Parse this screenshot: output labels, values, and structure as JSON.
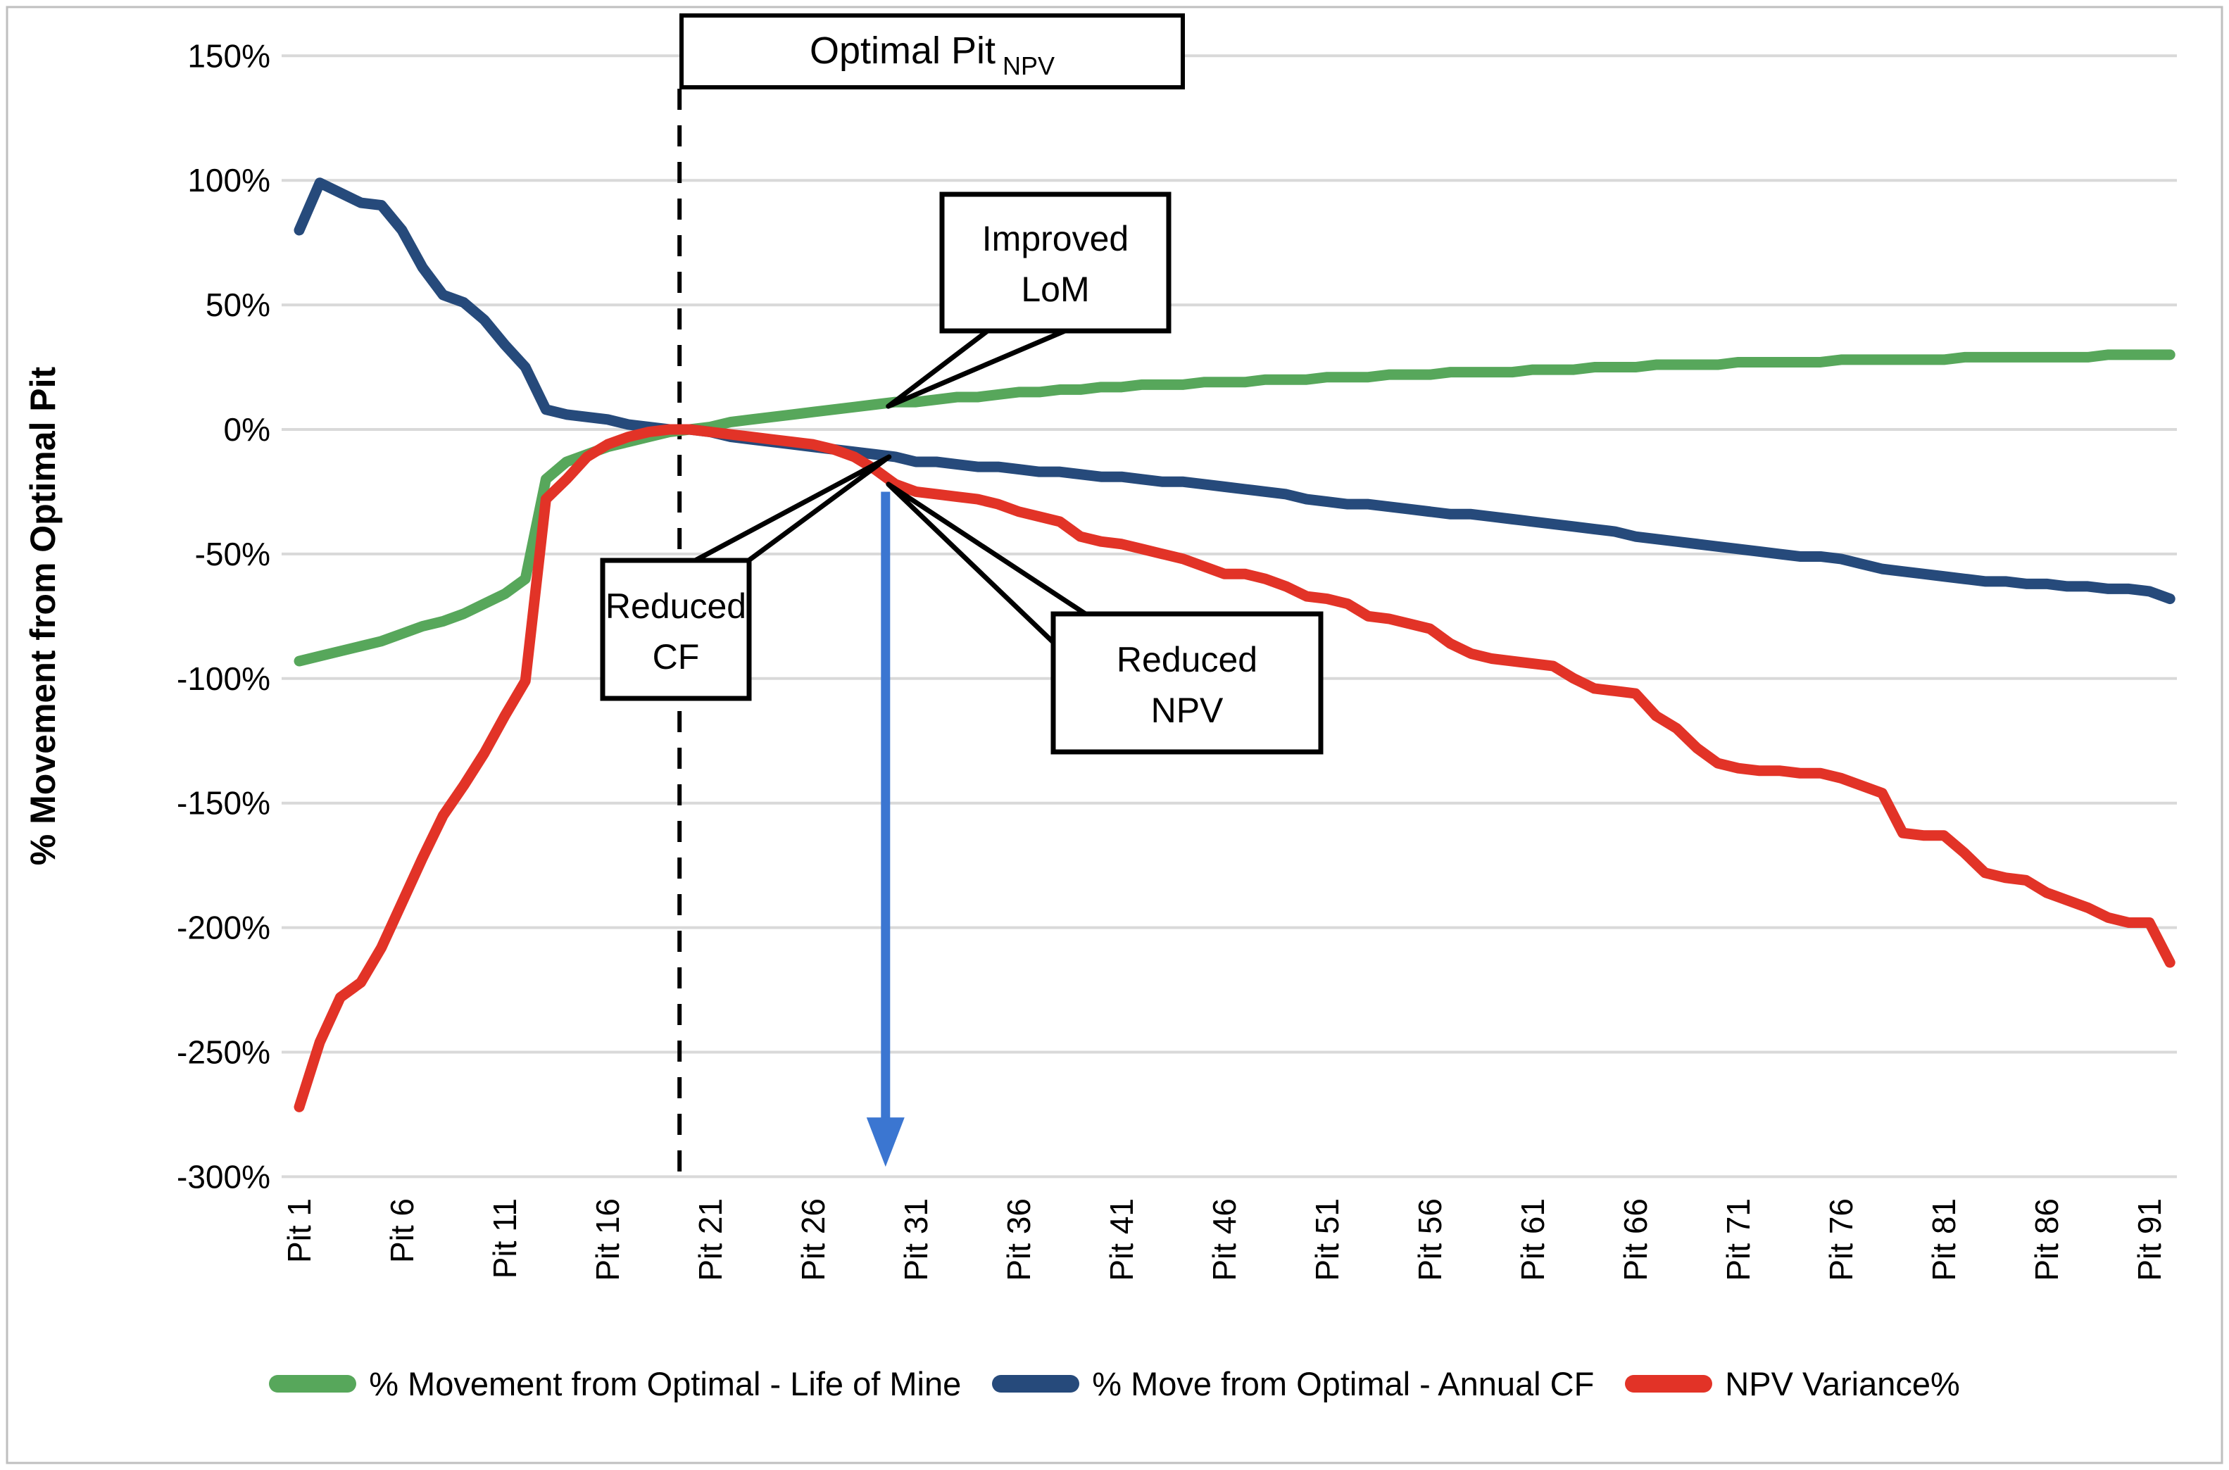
{
  "figure": {
    "background": "#ffffff",
    "frame_color": "#bfbfbf"
  },
  "y_axis": {
    "title": "% Movement from Optimal Pit",
    "tick_labels": [
      "150%",
      "100%",
      "50%",
      "0%",
      "-50%",
      "-100%",
      "-150%",
      "-200%",
      "-250%",
      "-300%"
    ],
    "tick_values": [
      150,
      100,
      50,
      0,
      -50,
      -100,
      -150,
      -200,
      -250,
      -300
    ],
    "min": -300,
    "max": 150
  },
  "x_axis": {
    "tick_pits": [
      1,
      6,
      11,
      16,
      21,
      26,
      31,
      36,
      41,
      46,
      51,
      56,
      61,
      66,
      71,
      76,
      81,
      86,
      91
    ],
    "tick_labels": [
      "Pit 1",
      "Pit 6",
      "Pit 11",
      "Pit 16",
      "Pit 21",
      "Pit 26",
      "Pit 31",
      "Pit 36",
      "Pit 41",
      "Pit 46",
      "Pit 51",
      "Pit 56",
      "Pit 61",
      "Pit 66",
      "Pit 71",
      "Pit 76",
      "Pit 81",
      "Pit 86",
      "Pit 91"
    ]
  },
  "annotations": {
    "optimal_pit": {
      "text": "Optimal Pit",
      "subscript": "NPV",
      "pit": 19.5
    },
    "improved_lom": {
      "lines": [
        "Improved",
        "LoM"
      ],
      "target_pit": 30,
      "target_value": 11
    },
    "reduced_cf": {
      "lines": [
        "Reduced",
        "CF"
      ],
      "target_pit": 30,
      "target_value": -11
    },
    "reduced_npv": {
      "lines": [
        "Reduced",
        "NPV"
      ],
      "target_pit": 30,
      "target_value": -22
    },
    "npv_drop_arrow": {
      "color": "#3b76d1",
      "pit": 30,
      "from_value": -25,
      "to_value": -296
    }
  },
  "legend": [
    {
      "label": "% Movement from Optimal - Life of Mine",
      "color": "#57a75b"
    },
    {
      "label": "% Move from Optimal - Annual CF",
      "color": "#264a7b"
    },
    {
      "label": "NPV Variance%",
      "color": "#e23327"
    }
  ],
  "chart_data": {
    "type": "line",
    "x_label_prefix": "Pit",
    "x_range": [
      1,
      92
    ],
    "ylabel": "% Movement from Optimal Pit",
    "ylim": [
      -300,
      150
    ],
    "grid": true,
    "grid_color": "#d9d9d9",
    "legend_position": "bottom",
    "series": [
      {
        "name": "% Movement from Optimal - Life of Mine",
        "color": "#57a75b",
        "values": [
          -93,
          -91,
          -89,
          -87,
          -85,
          -82,
          -79,
          -77,
          -74,
          -70,
          -66,
          -60,
          -20,
          -13,
          -10,
          -7,
          -5,
          -3,
          -1,
          0,
          1,
          3,
          4,
          5,
          6,
          7,
          8,
          9,
          10,
          11,
          11,
          12,
          13,
          13,
          14,
          15,
          15,
          16,
          16,
          17,
          17,
          18,
          18,
          18,
          19,
          19,
          19,
          20,
          20,
          20,
          21,
          21,
          21,
          22,
          22,
          22,
          23,
          23,
          23,
          23,
          24,
          24,
          24,
          25,
          25,
          25,
          26,
          26,
          26,
          26,
          27,
          27,
          27,
          27,
          27,
          28,
          28,
          28,
          28,
          28,
          28,
          29,
          29,
          29,
          29,
          29,
          29,
          29,
          30,
          30,
          30,
          30
        ]
      },
      {
        "name": "% Move from Optimal - Annual CF",
        "color": "#264a7b",
        "values": [
          80,
          99,
          95,
          91,
          90,
          80,
          65,
          54,
          51,
          44,
          34,
          25,
          8,
          6,
          5,
          4,
          2,
          1,
          0,
          0,
          -1,
          -3,
          -4,
          -5,
          -6,
          -7,
          -8,
          -9,
          -10,
          -11,
          -13,
          -13,
          -14,
          -15,
          -15,
          -16,
          -17,
          -17,
          -18,
          -19,
          -19,
          -20,
          -21,
          -21,
          -22,
          -23,
          -24,
          -25,
          -26,
          -28,
          -29,
          -30,
          -30,
          -31,
          -32,
          -33,
          -34,
          -34,
          -35,
          -36,
          -37,
          -38,
          -39,
          -40,
          -41,
          -43,
          -44,
          -45,
          -46,
          -47,
          -48,
          -49,
          -50,
          -51,
          -51,
          -52,
          -54,
          -56,
          -57,
          -58,
          -59,
          -60,
          -61,
          -61,
          -62,
          -62,
          -63,
          -63,
          -64,
          -64,
          -65,
          -68
        ]
      },
      {
        "name": "NPV Variance%",
        "color": "#e23327",
        "values": [
          -272,
          -246,
          -228,
          -222,
          -208,
          -190,
          -172,
          -155,
          -143,
          -130,
          -115,
          -101,
          -28,
          -20,
          -11,
          -6,
          -3,
          -1,
          0,
          0,
          -1,
          -2,
          -3,
          -4,
          -5,
          -6,
          -8,
          -11,
          -16,
          -22,
          -25,
          -26,
          -27,
          -28,
          -30,
          -33,
          -35,
          -37,
          -43,
          -45,
          -46,
          -48,
          -50,
          -52,
          -55,
          -58,
          -58,
          -60,
          -63,
          -67,
          -68,
          -70,
          -75,
          -76,
          -78,
          -80,
          -86,
          -90,
          -92,
          -93,
          -94,
          -95,
          -100,
          -104,
          -105,
          -106,
          -115,
          -120,
          -128,
          -134,
          -136,
          -137,
          -137,
          -138,
          -138,
          -140,
          -143,
          -146,
          -162,
          -163,
          -163,
          -170,
          -178,
          -180,
          -181,
          -186,
          -189,
          -192,
          -196,
          -198,
          -198,
          -214
        ]
      }
    ]
  }
}
